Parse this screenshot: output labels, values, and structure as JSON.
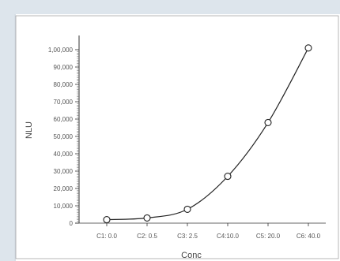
{
  "chart_data": {
    "type": "line",
    "title": "",
    "xlabel": "Conc",
    "ylabel": "NLU",
    "categories": [
      "C1: 0.0",
      "C2: 0.5",
      "C3: 2.5",
      "C4:10.0",
      "C5: 20.0",
      "C6: 40.0"
    ],
    "series": [
      {
        "name": "",
        "values": [
          2000,
          3000,
          8000,
          27000,
          58000,
          101000
        ]
      }
    ],
    "ylim": [
      0,
      110000
    ],
    "yticks": [
      0,
      10000,
      20000,
      30000,
      40000,
      50000,
      60000,
      70000,
      80000,
      90000,
      100000
    ],
    "ytick_labels": [
      "0",
      "10,000",
      "20,000",
      "30,000",
      "40,000",
      "50,000",
      "60,000",
      "70,000",
      "80,000",
      "90,000",
      "1,00,000"
    ],
    "minor_ticks_per_major": 10,
    "grid": false,
    "legend": "none",
    "colors": {
      "line": "#222222",
      "marker_fill": "#ffffff",
      "background": "#dde5ec",
      "panel": "#ffffff",
      "frame": "#888888"
    }
  }
}
